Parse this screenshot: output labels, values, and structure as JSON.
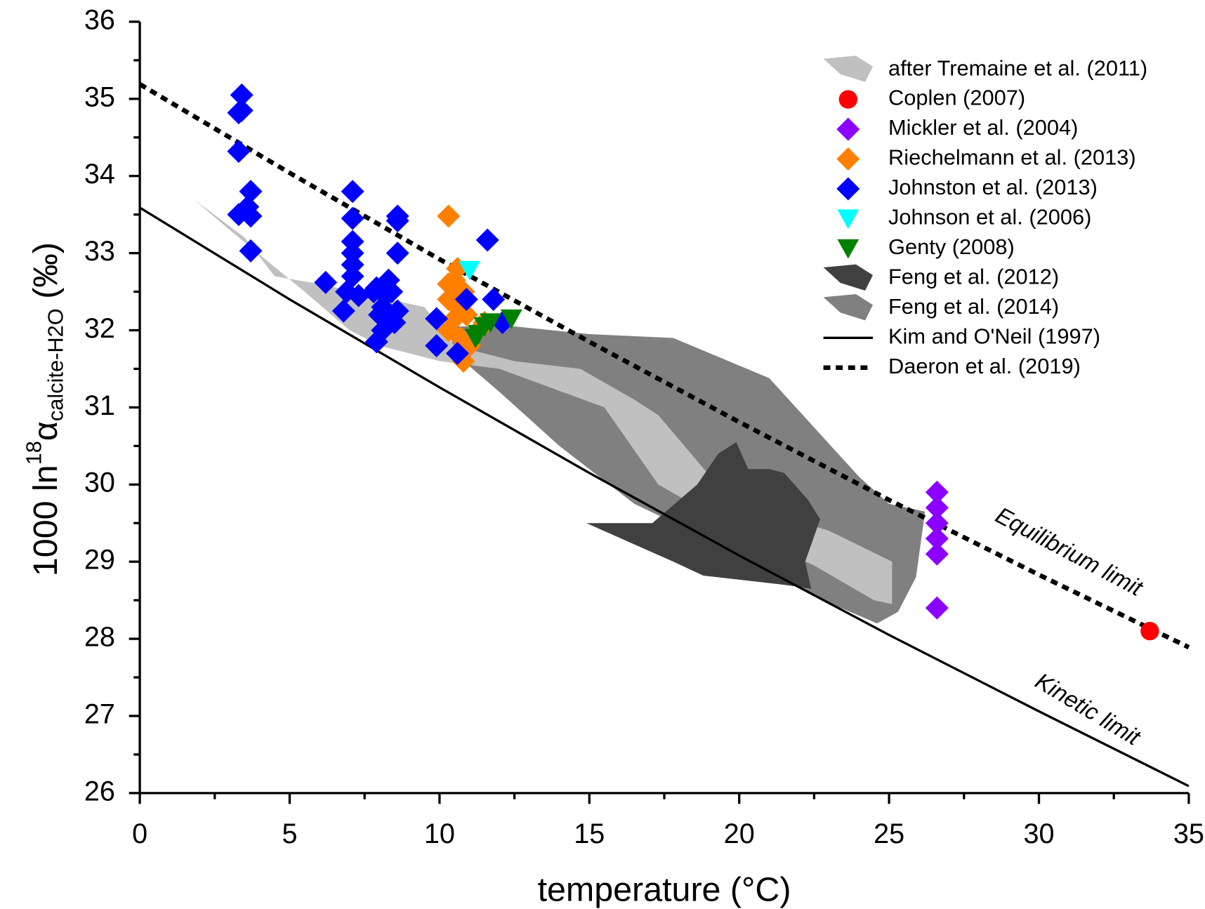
{
  "chart_data": {
    "type": "scatter",
    "xlabel": "temperature (°C)",
    "ylabel": [
      "1000 ln",
      "18",
      "α",
      "calcite-H2O",
      " (‰)"
    ],
    "xlim": [
      0,
      35
    ],
    "ylim": [
      26,
      36
    ],
    "xticks": [
      0,
      5,
      10,
      15,
      20,
      25,
      30,
      35
    ],
    "yticks": [
      26,
      27,
      28,
      29,
      30,
      31,
      32,
      33,
      34,
      35,
      36
    ],
    "xminorticks": [
      2.5,
      7.5,
      12.5,
      17.5,
      22.5,
      27.5,
      32.5
    ],
    "yminorticks": [
      26.5,
      27.5,
      28.5,
      29.5,
      30.5,
      31.5,
      32.5,
      33.5,
      34.5,
      35.5
    ],
    "annotations": [
      "Equilibrium limit",
      "Kinetic limit"
    ],
    "series": [
      {
        "name": "after Tremaine et al. (2011)",
        "type": "area",
        "color": "#c0c0c0",
        "x": [
          1.8,
          3.5,
          4.5,
          6,
          9.5,
          10.5,
          12.5,
          14.7,
          16.5,
          17.3,
          19.7,
          23,
          25.1,
          25.1,
          24.5,
          22.5,
          20,
          17.3,
          15.5,
          12,
          10,
          8,
          7,
          5.5,
          3
        ],
        "y": [
          33.7,
          33.2,
          32.7,
          32.6,
          32.3,
          31.8,
          31.6,
          31.5,
          31.1,
          30.9,
          29.8,
          29.4,
          29.0,
          28.45,
          28.5,
          28.95,
          29.4,
          30.0,
          31.0,
          31.5,
          31.6,
          31.8,
          32.0,
          32.5,
          33.3
        ]
      },
      {
        "name": "Coplen (2007)",
        "type": "scatter",
        "marker": "circle",
        "color": "#ff0000",
        "x": [
          33.7
        ],
        "y": [
          28.1
        ]
      },
      {
        "name": "Mickler et al. (2004)",
        "type": "scatter",
        "marker": "diamond",
        "color": "#8b00ff",
        "x": [
          26.6,
          26.6,
          26.6,
          26.6,
          26.6,
          26.6
        ],
        "y": [
          29.9,
          29.7,
          29.5,
          29.3,
          29.1,
          28.4
        ]
      },
      {
        "name": "Riechelmann et al. (2013)",
        "type": "scatter",
        "marker": "diamond",
        "color": "#ff8000",
        "x": [
          10.3,
          10.6,
          10.5,
          10.3,
          10.8,
          10.3,
          10.6,
          10.9,
          10.5,
          10.3,
          10.7,
          11.0,
          10.6,
          10.8,
          11.3,
          11.5
        ],
        "y": [
          33.48,
          32.8,
          32.65,
          32.6,
          32.5,
          32.4,
          32.3,
          32.2,
          32.15,
          32.0,
          31.9,
          31.8,
          31.7,
          31.6,
          32.0,
          32.1
        ]
      },
      {
        "name": "Johnston et al. (2013)",
        "type": "scatter",
        "marker": "diamond",
        "color": "#0000ff",
        "x": [
          3.4,
          3.4,
          3.3,
          3.3,
          3.7,
          3.6,
          3.3,
          3.7,
          3.7,
          6.2,
          7.1,
          7.1,
          7.1,
          7.1,
          7.1,
          7.1,
          6.9,
          7.3,
          6.8,
          7.8,
          7.9,
          8.2,
          8.1,
          8.3,
          8.4,
          8.0,
          8.1,
          7.9,
          8.6,
          8.6,
          8.6,
          8.6,
          8.5,
          9.9,
          9.9,
          10.6,
          10.9,
          11.6,
          11.8,
          12.1
        ],
        "y": [
          35.05,
          34.85,
          34.82,
          34.32,
          33.8,
          33.6,
          33.5,
          33.48,
          33.03,
          32.62,
          33.8,
          33.45,
          33.15,
          33.0,
          32.85,
          32.7,
          32.5,
          32.45,
          32.25,
          32.5,
          32.55,
          32.45,
          32.3,
          32.65,
          32.5,
          32.2,
          32.0,
          31.85,
          33.48,
          33.42,
          33.0,
          32.25,
          32.1,
          32.15,
          31.8,
          31.7,
          32.4,
          33.17,
          32.4,
          32.1
        ]
      },
      {
        "name": "Johnson et al. (2006)",
        "type": "scatter",
        "marker": "triangle-down",
        "color": "#00ffff",
        "x": [
          11.0
        ],
        "y": [
          32.78
        ]
      },
      {
        "name": "Genty (2008)",
        "type": "scatter",
        "marker": "triangle-down",
        "color": "#008000",
        "x": [
          11.2,
          11.3,
          11.5,
          11.7,
          12.4
        ],
        "y": [
          31.9,
          31.95,
          32.05,
          32.1,
          32.15
        ]
      },
      {
        "name": "Feng et al. (2012)",
        "type": "area",
        "color": "#404040",
        "x": [
          14.9,
          17.1,
          18.6,
          19.3,
          19.9,
          20.3,
          21.0,
          21.5,
          22.3,
          22.7,
          22.2,
          22.4,
          21.5,
          18.8,
          17.8
        ],
        "y": [
          29.5,
          29.5,
          30.0,
          30.4,
          30.55,
          30.2,
          30.2,
          30.15,
          29.8,
          29.55,
          29.0,
          28.65,
          28.7,
          28.82,
          29.0
        ]
      },
      {
        "name": "Feng et al. (2014)",
        "type": "area",
        "color": "#808080",
        "x": [
          10.3,
          11.2,
          12.5,
          15,
          17.8,
          21,
          24,
          25,
          26.2,
          25.9,
          25.3,
          24.6,
          22.5,
          20,
          16.5,
          14,
          12,
          10.5
        ],
        "y": [
          32.05,
          32.05,
          32.05,
          31.95,
          31.9,
          31.38,
          30.1,
          29.75,
          29.65,
          28.8,
          28.35,
          28.2,
          28.55,
          29.1,
          29.75,
          30.5,
          31.2,
          31.7
        ]
      },
      {
        "name": "Kim and O'Neil (1997)",
        "type": "line",
        "dash": "solid",
        "color": "#000000",
        "x": [
          0,
          5,
          10,
          15,
          20,
          25,
          30,
          35
        ],
        "y": [
          33.59,
          32.4,
          31.26,
          30.15,
          29.08,
          28.05,
          27.06,
          26.09
        ]
      },
      {
        "name": "Daeron et al. (2019)",
        "type": "line",
        "dash": "dotted",
        "color": "#000000",
        "x": [
          0,
          5,
          10,
          15,
          20,
          25,
          30,
          35
        ],
        "y": [
          35.19,
          34.04,
          32.92,
          31.85,
          30.81,
          29.8,
          28.83,
          27.89
        ]
      }
    ]
  }
}
